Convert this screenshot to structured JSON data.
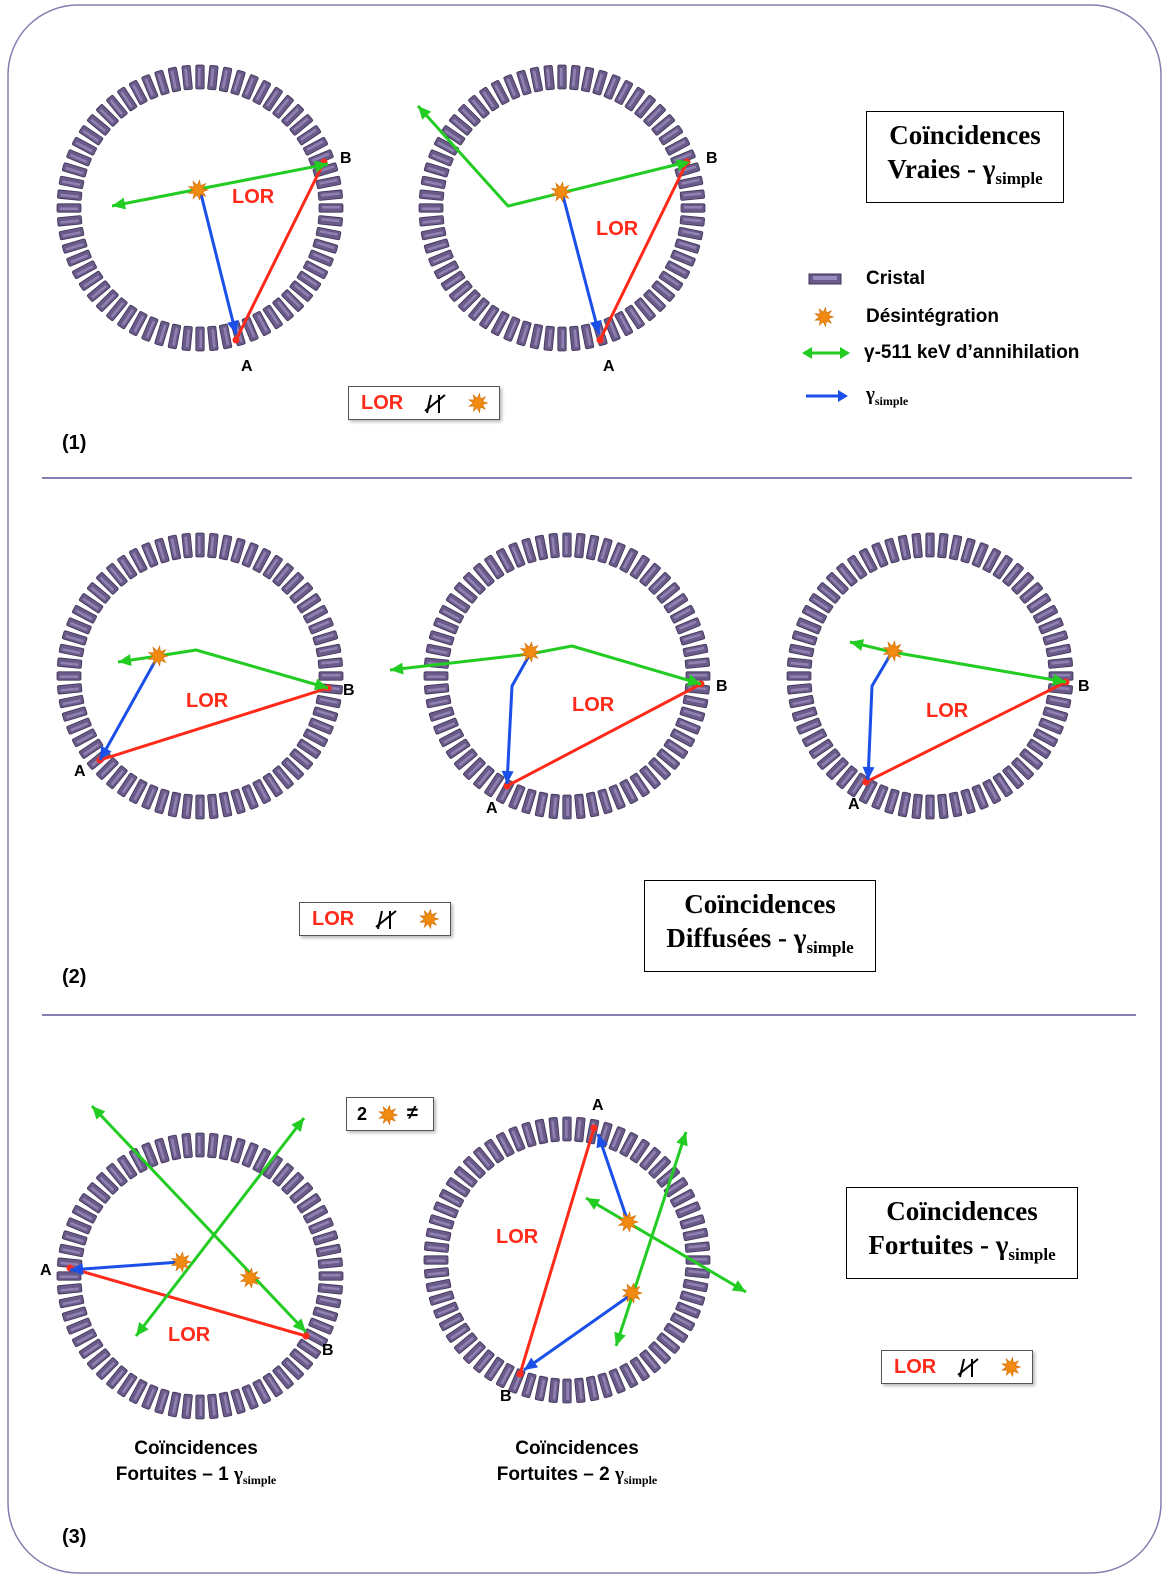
{
  "colors": {
    "green": "#22cc22",
    "blue": "#1a4fe8",
    "red": "#ff2a1a",
    "crystal": "#6a5a8a",
    "burst": "#f08a10"
  },
  "section1": {
    "label": "(1)",
    "title_line1": "Coïncidences",
    "title_line2_main": "Vraies - γ",
    "title_line2_sub": "simple",
    "lor_box": {
      "lor": "LOR",
      "symbol": "≠"
    }
  },
  "section2": {
    "label": "(2)",
    "title_line1": "Coïncidences",
    "title_line2_main": "Diffusées - γ",
    "title_line2_sub": "simple",
    "lor_box": {
      "lor": "LOR",
      "symbol": "≠"
    }
  },
  "section3": {
    "label": "(3)",
    "title_line1": "Coïncidences",
    "title_line2_main": "Fortuites - γ",
    "title_line2_sub": "simple",
    "lor_box": {
      "lor": "LOR",
      "symbol": "≠"
    },
    "two_box": {
      "num": "2",
      "neq": "≠"
    },
    "caption1_line1": "Coïncidences",
    "caption1_line2_main": "Fortuites – 1 ",
    "caption1_gamma": "γ",
    "caption1_sub": "simple",
    "caption2_line1": "Coïncidences",
    "caption2_line2_main": "Fortuites – 2 ",
    "caption2_gamma": "γ",
    "caption2_sub": "simple"
  },
  "legend": {
    "crystal": "Cristal",
    "decay": "Désintégration",
    "annihilation": "γ-511 keV d’annihilation",
    "single_main": "γ",
    "single_sub": "simple"
  },
  "labels": {
    "lor": "LOR",
    "a": "A",
    "b": "B"
  }
}
